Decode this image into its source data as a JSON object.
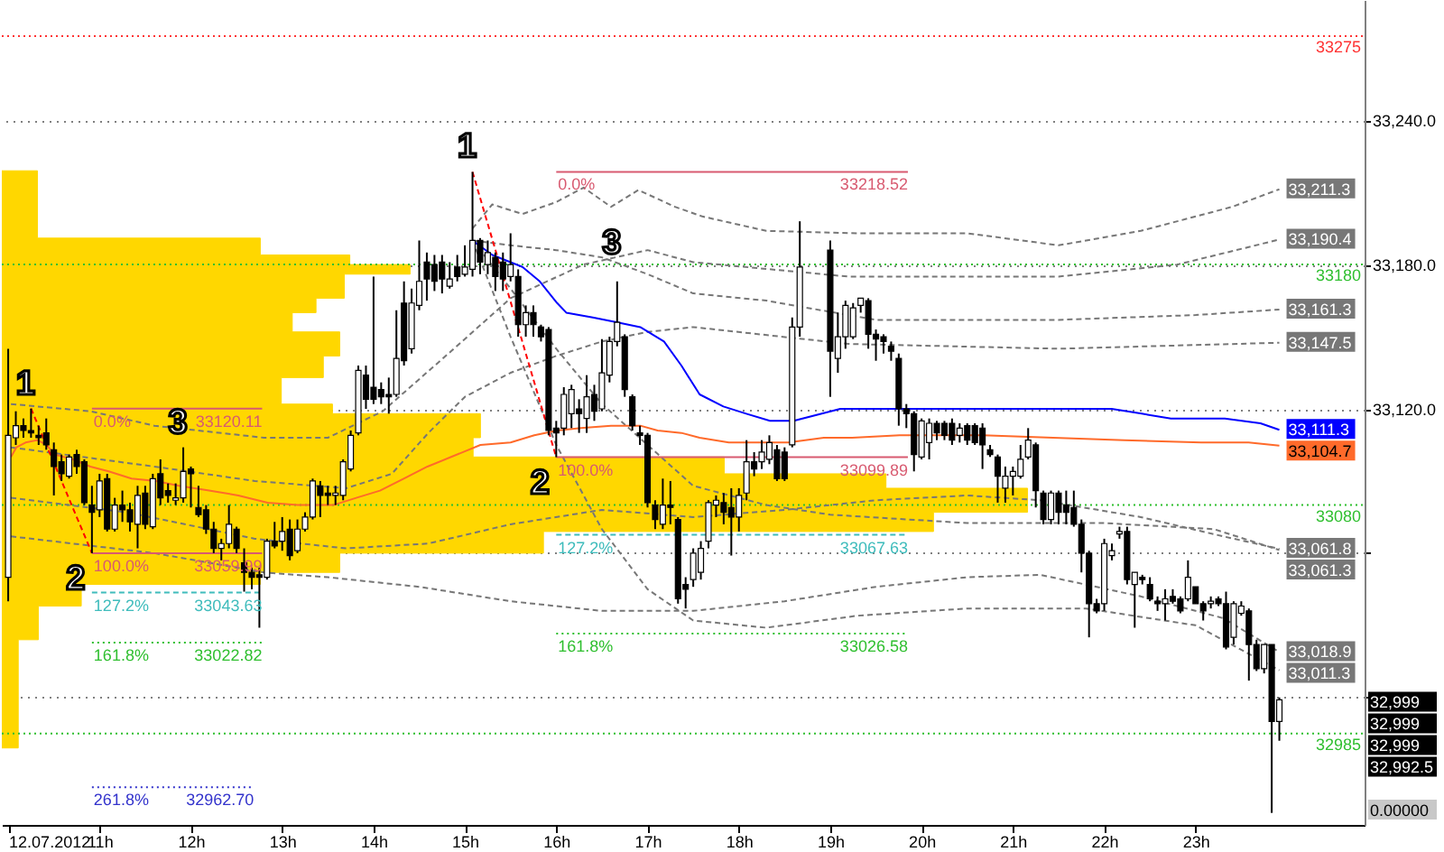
{
  "chart_data": {
    "type": "candlestick",
    "color": "#000000",
    "x": [
      10,
      10.0833,
      10.1667,
      10.25,
      10.3333,
      10.4167,
      10.5,
      10.5833,
      10.6667,
      10.75,
      10.8333,
      10.9167,
      11,
      11.0833,
      11.1667,
      11.25,
      11.3333,
      11.4167,
      11.5,
      11.5833,
      11.6667,
      11.75,
      11.8333,
      11.9167,
      12,
      12.0833,
      12.1667,
      12.25,
      12.3333,
      12.4167,
      12.5,
      12.5833,
      12.6667,
      12.75,
      12.8333,
      12.9167,
      13,
      13.0833,
      13.1667,
      13.25,
      13.3333,
      13.4167,
      13.5,
      13.5833,
      13.6667,
      13.75,
      13.8333,
      13.9167,
      14,
      14.0833,
      14.1667,
      14.25,
      14.3333,
      14.4167,
      14.5,
      14.5833,
      14.6667,
      14.75,
      14.8333,
      14.9167,
      15,
      15.0833,
      15.1667,
      15.25,
      15.3333,
      15.4167,
      15.5,
      15.5833,
      15.6667,
      15.75,
      15.8333,
      15.9167,
      16,
      16.0833,
      16.1667,
      16.25,
      16.3333,
      16.4167,
      16.5,
      16.5833,
      16.6667,
      16.75,
      16.8333,
      16.9167,
      17,
      17.0833,
      17.1667,
      17.25,
      17.3333,
      17.4167,
      17.5,
      17.5833,
      17.6667,
      17.75,
      17.8333,
      17.9167,
      18,
      18.0833,
      18.1667,
      18.25,
      18.3333,
      18.4167,
      18.5,
      18.5833,
      18.6667,
      19,
      19.0833,
      19.1667,
      19.25,
      19.3333,
      19.4167,
      19.5,
      19.5833,
      19.6667,
      19.75,
      19.8333,
      19.9167,
      20,
      20.0833,
      20.1667,
      20.25,
      20.3333,
      20.4167,
      20.5,
      20.5833,
      20.6667,
      20.75,
      20.8333,
      20.9167,
      21,
      21.0833,
      21.1667,
      21.25,
      21.3333,
      21.4167,
      21.5,
      21.5833,
      21.6667,
      21.75,
      21.8333,
      21.9167,
      22,
      22.0833,
      22.1667,
      22.25,
      22.3333,
      22.4167,
      22.5,
      22.5833,
      22.6667,
      22.75,
      22.8333,
      22.9167,
      23,
      23.0833,
      23.1667,
      23.25,
      23.3333,
      23.4167,
      23.5,
      23.5833,
      23.6667,
      23.75,
      23.8333,
      23.9167
    ],
    "ohlc": [
      [
        33050,
        33145,
        33040,
        33109
      ],
      [
        33108,
        33119,
        33105,
        33113
      ],
      [
        33113,
        33116,
        33108,
        33111
      ],
      [
        33111,
        33120.11,
        33108,
        33110
      ],
      [
        33109,
        33113,
        33105,
        33108
      ],
      [
        33110,
        33116,
        33103,
        33105
      ],
      [
        33103,
        33106,
        33084,
        33096
      ],
      [
        33098,
        33101,
        33090,
        33093
      ],
      [
        33092,
        33101,
        33091,
        33100
      ],
      [
        33101,
        33103,
        33093,
        33096
      ],
      [
        33098,
        33099,
        33080,
        33081
      ],
      [
        33080,
        33088,
        33059.99,
        33077
      ],
      [
        33078,
        33093,
        33075,
        33090
      ],
      [
        33091,
        33093,
        33069,
        33070
      ],
      [
        33070,
        33083,
        33069,
        33080
      ],
      [
        33080,
        33086,
        33073,
        33078
      ],
      [
        33078,
        33081,
        33069,
        33073
      ],
      [
        33072,
        33088,
        33062,
        33084
      ],
      [
        33085,
        33088,
        33070,
        33072
      ],
      [
        33071,
        33093,
        33070,
        33091
      ],
      [
        33093,
        33099,
        33080,
        33083
      ],
      [
        33086,
        33089,
        33081,
        33084
      ],
      [
        33082,
        33089,
        33080,
        33083
      ],
      [
        33083,
        33104,
        33081,
        33094
      ],
      [
        33095,
        33096,
        33079,
        33093
      ],
      [
        33079,
        33088,
        33075,
        33076
      ],
      [
        33078,
        33080,
        33068,
        33070
      ],
      [
        33070,
        33073,
        33060,
        33062
      ],
      [
        33062,
        33066,
        33057,
        33064
      ],
      [
        33064,
        33080,
        33062,
        33072
      ],
      [
        33070,
        33071,
        33060,
        33062
      ],
      [
        33056,
        33062,
        33044,
        33052
      ],
      [
        33052,
        33054,
        33045,
        33050
      ],
      [
        33051,
        33054,
        33029,
        33050
      ],
      [
        33050,
        33066,
        33049,
        33065
      ],
      [
        33065,
        33073,
        33062,
        33063
      ],
      [
        33065,
        33075,
        33061,
        33069
      ],
      [
        33070,
        33074,
        33057,
        33059
      ],
      [
        33061,
        33074,
        33060,
        33070
      ],
      [
        33070,
        33077,
        33069,
        33075
      ],
      [
        33075,
        33091,
        33074,
        33090
      ],
      [
        33088,
        33090,
        33075,
        33084
      ],
      [
        33085,
        33088,
        33080,
        33084
      ],
      [
        33084,
        33088,
        33080,
        33085
      ],
      [
        33084,
        33099,
        33082,
        33098
      ],
      [
        33095,
        33111,
        33094,
        33109
      ],
      [
        33110,
        33138,
        33109,
        33136
      ],
      [
        33134,
        33138,
        33120,
        33124
      ],
      [
        33129,
        33175,
        33122,
        33124
      ],
      [
        33128,
        33131,
        33122,
        33125
      ],
      [
        33126,
        33133,
        33118,
        33125
      ],
      [
        33126,
        33161,
        33125,
        33141
      ],
      [
        33164,
        33173,
        33138,
        33140
      ],
      [
        33145,
        33170,
        33143,
        33164
      ],
      [
        33163,
        33190,
        33161,
        33173
      ],
      [
        33181,
        33185,
        33165,
        33174
      ],
      [
        33180,
        33184,
        33169,
        33173
      ],
      [
        33181,
        33184,
        33168,
        33174
      ],
      [
        33171,
        33181,
        33170,
        33174
      ],
      [
        33179,
        33184,
        33173,
        33175
      ],
      [
        33176,
        33188,
        33175,
        33179
      ],
      [
        33178,
        33218.52,
        33175,
        33190
      ],
      [
        33190,
        33191,
        33176,
        33181
      ],
      [
        33180,
        33190,
        33176,
        33185
      ],
      [
        33183,
        33185,
        33169,
        33175
      ],
      [
        33181,
        33185,
        33169,
        33174
      ],
      [
        33175,
        33193,
        33173,
        33180
      ],
      [
        33175,
        33178,
        33150,
        33155
      ],
      [
        33155,
        33163,
        33150,
        33160
      ],
      [
        33160,
        33163,
        33150,
        33155
      ],
      [
        33154,
        33155,
        33148,
        33150
      ],
      [
        33153,
        33154,
        33109,
        33111
      ],
      [
        33112,
        33115,
        33099.89,
        33110
      ],
      [
        33112,
        33129,
        33109,
        33126
      ],
      [
        33118,
        33130,
        33112,
        33128
      ],
      [
        33120,
        33124,
        33110,
        33118
      ],
      [
        33116,
        33134,
        33110,
        33125
      ],
      [
        33126,
        33130,
        33115,
        33119
      ],
      [
        33120,
        33149,
        33119,
        33135
      ],
      [
        33134,
        33150,
        33131,
        33148
      ],
      [
        33148,
        33173,
        33146,
        33156
      ],
      [
        33150,
        33151,
        33125,
        33128
      ],
      [
        33125,
        33126,
        33111,
        33113
      ],
      [
        33110,
        33113,
        33105,
        33109
      ],
      [
        33109,
        33110,
        33079,
        33081
      ],
      [
        33080,
        33082,
        33070,
        33074
      ],
      [
        33072,
        33091,
        33070,
        33080
      ],
      [
        33080,
        33090,
        33072,
        33079
      ],
      [
        33074,
        33075,
        33039,
        33041
      ],
      [
        33047,
        33050,
        33037,
        33045
      ],
      [
        33049,
        33062,
        33046,
        33060
      ],
      [
        33052,
        33065,
        33049,
        33062
      ],
      [
        33065,
        33082,
        33062,
        33081
      ],
      [
        33080,
        33084,
        33075,
        33082
      ],
      [
        33081,
        33085,
        33072,
        33077
      ],
      [
        33079,
        33087,
        33059,
        33075
      ],
      [
        33075,
        33087,
        33069,
        33084
      ],
      [
        33085,
        33107,
        33082,
        33098
      ],
      [
        33098,
        33102,
        33092,
        33095
      ],
      [
        33098,
        33107,
        33095,
        33102
      ],
      [
        33099,
        33109,
        33097,
        33106
      ],
      [
        33103,
        33105,
        33090,
        33091
      ],
      [
        33102,
        33104,
        33090,
        33091
      ],
      [
        33105,
        33158,
        33104,
        33154
      ],
      [
        33154,
        33198,
        33150,
        33179
      ],
      [
        33186,
        33190,
        33125,
        33144
      ],
      [
        33141,
        33160,
        33135,
        33150
      ],
      [
        33150,
        33165,
        33145,
        33163
      ],
      [
        33150,
        33164,
        33149,
        33162
      ],
      [
        33163,
        33166,
        33160,
        33166
      ],
      [
        33165,
        33166,
        33145,
        33151
      ],
      [
        33151,
        33153,
        33140,
        33149
      ],
      [
        33150,
        33151,
        33143,
        33148
      ],
      [
        33146,
        33148,
        33140,
        33144
      ],
      [
        33141,
        33143,
        33113,
        33120
      ],
      [
        33120,
        33122,
        33112,
        33118
      ],
      [
        33118,
        33119,
        33094,
        33101
      ],
      [
        33100,
        33116,
        33099,
        33115
      ],
      [
        33106,
        33116,
        33099,
        33114
      ],
      [
        33114,
        33115,
        33107,
        33110
      ],
      [
        33114,
        33115,
        33107,
        33109
      ],
      [
        33114,
        33116,
        33105,
        33107
      ],
      [
        33109,
        33114,
        33106,
        33112
      ],
      [
        33113,
        33114,
        33105,
        33107
      ],
      [
        33113,
        33114,
        33105,
        33106
      ],
      [
        33112,
        33114,
        33095,
        33105
      ],
      [
        33103,
        33105,
        33100,
        33101
      ],
      [
        33100,
        33101,
        33081,
        33092
      ],
      [
        33087,
        33096,
        33081,
        33092
      ],
      [
        33092,
        33096,
        33084,
        33094
      ],
      [
        33092,
        33105,
        33091,
        33099
      ],
      [
        33100,
        33112,
        33099,
        33107
      ],
      [
        33105,
        33106,
        33079,
        33086
      ],
      [
        33085,
        33086,
        33072,
        33074
      ],
      [
        33074,
        33086,
        33072,
        33085
      ],
      [
        33085,
        33086,
        33072,
        33077
      ],
      [
        33080,
        33086,
        33072,
        33077
      ],
      [
        33079,
        33086,
        33071,
        33072
      ],
      [
        33072,
        33074,
        33052,
        33060
      ],
      [
        33060,
        33061,
        33025,
        33039
      ],
      [
        33039,
        33041,
        33035,
        33036
      ],
      [
        33039,
        33066,
        33036,
        33064
      ],
      [
        33059,
        33064,
        33057,
        33061
      ],
      [
        33068,
        33071,
        33066,
        33069
      ],
      [
        33069,
        33071,
        33047,
        33049
      ],
      [
        33047,
        33052,
        33029,
        33052
      ],
      [
        33050,
        33051,
        33047,
        33049
      ],
      [
        33047,
        33050,
        33040,
        33041
      ],
      [
        33040,
        33042,
        33036,
        33039
      ],
      [
        33039,
        33045,
        33032,
        33041
      ],
      [
        33042,
        33045,
        33039,
        33040
      ],
      [
        33041,
        33042,
        33035,
        33036
      ],
      [
        33041,
        33057,
        33040,
        33050
      ],
      [
        33046,
        33046,
        33039,
        33039
      ],
      [
        33039,
        33040,
        33032,
        33036
      ],
      [
        33039,
        33042,
        33037,
        33040
      ],
      [
        33041,
        33042,
        33038,
        33039
      ],
      [
        33039,
        33044,
        33020,
        33021
      ],
      [
        33025,
        33040,
        33022,
        33039
      ],
      [
        33035,
        33040,
        33034,
        33038
      ],
      [
        33036,
        33037,
        33007,
        33022
      ],
      [
        33022,
        33024,
        33011,
        33012
      ],
      [
        33012,
        33022,
        33010,
        33022
      ],
      [
        33022,
        33022,
        32952,
        32990
      ],
      [
        32990,
        33000,
        32982,
        32999
      ]
    ],
    "xlim": [
      9.93,
      24.85
    ],
    "ylim": [
      32947,
      33290
    ],
    "xticks": [
      {
        "value": 10,
        "label": "12.07.2012"
      },
      {
        "value": 11,
        "label": "11h"
      },
      {
        "value": 12,
        "label": "12h"
      },
      {
        "value": 13,
        "label": "13h"
      },
      {
        "value": 14,
        "label": "14h"
      },
      {
        "value": 15,
        "label": "15h"
      },
      {
        "value": 16,
        "label": "16h"
      },
      {
        "value": 17,
        "label": "17h"
      },
      {
        "value": 18,
        "label": "18h"
      },
      {
        "value": 19,
        "label": "19h"
      },
      {
        "value": 20,
        "label": "20h"
      },
      {
        "value": 21,
        "label": "21h"
      },
      {
        "value": 22,
        "label": "22h"
      },
      {
        "value": 23,
        "label": "23h"
      }
    ],
    "yticks": [
      {
        "value": 33240,
        "label": "33,240.0"
      },
      {
        "value": 33180,
        "label": "33,180.0"
      },
      {
        "value": 33120,
        "label": "33,120.0"
      },
      {
        "value": 33060,
        "label": null
      },
      {
        "value": 33000,
        "label": null
      }
    ],
    "grid": "y",
    "series": [
      {
        "type": "area",
        "color": "#ffd700",
        "x": [
          9.93,
          10.11,
          10.11,
          10.33,
          10.33,
          10.8,
          10.8,
          12.76,
          12.76,
          13.63,
          13.63,
          15.86,
          15.86,
          20.13,
          20.13,
          21.16,
          21.16,
          19.61,
          19.61,
          17.84,
          17.84,
          15.09,
          15.09,
          15.17,
          15.17,
          13.55,
          13.55,
          12.99,
          12.99,
          13.45,
          13.45,
          13.63,
          13.63,
          13.11,
          13.11,
          13.37,
          13.37,
          13.68,
          13.68,
          14.4,
          14.4,
          13.74,
          13.74,
          12.76,
          12.76,
          10.32,
          10.32,
          9.93
        ],
        "values": [
          32979,
          32979,
          33024,
          33024,
          33038,
          33038,
          33047,
          33047,
          33052,
          33052,
          33060,
          33060,
          33069,
          33069,
          33077,
          33077,
          33087,
          33087,
          33093,
          33093,
          33100,
          33100,
          33108,
          33108,
          33118,
          33118,
          33122,
          33122,
          33133,
          33133,
          33142,
          33142,
          33152,
          33152,
          33160,
          33160,
          33166,
          33166,
          33176,
          33176,
          33180,
          33180,
          33184,
          33184,
          33191,
          33191,
          33219,
          33219
        ]
      },
      {
        "type": "line",
        "color": "#777777",
        "line_style": "dashed",
        "x": [
          15.0833,
          15.3,
          15.63,
          16.0,
          16.3,
          16.6,
          16.9,
          17.3,
          17.6,
          18.3,
          19.3,
          20.5,
          21.5,
          22.4,
          23.4,
          23.9167
        ],
        "values": [
          33195,
          33205,
          33201,
          33206,
          33212,
          33204,
          33211,
          33204,
          33200,
          33194,
          33193,
          33193,
          33188,
          33194,
          33204,
          33211.3
        ],
        "value_labels": [
          null,
          null,
          null,
          null,
          null,
          null,
          null,
          null,
          null,
          null,
          null,
          null,
          null,
          null,
          null,
          "33,211.3"
        ]
      },
      {
        "type": "line",
        "color": "#777777",
        "line_style": "dashed",
        "x": [
          10.03,
          10.9,
          11.6,
          12.8,
          13.5,
          14.1,
          14.85,
          15.5,
          16.3,
          17.0,
          17.5,
          19.2,
          21.5,
          22.8,
          23.9167
        ],
        "values": [
          33122,
          33119,
          33113,
          33108,
          33108,
          33119,
          33144,
          33166,
          33180,
          33186,
          33181,
          33175,
          33175,
          33180,
          33190.4
        ],
        "value_labels": [
          null,
          null,
          null,
          null,
          null,
          null,
          null,
          null,
          null,
          null,
          null,
          null,
          null,
          null,
          "33,190.4"
        ]
      },
      {
        "type": "line",
        "color": "#777777",
        "line_style": "dashed",
        "x": [
          15.0833,
          15.5,
          16.0,
          16.5,
          17.0,
          17.5,
          18.3,
          19.5,
          21.5,
          23.0,
          23.9167
        ],
        "values": [
          33190,
          33188,
          33186,
          33183,
          33176,
          33168,
          33165,
          33157,
          33157,
          33159,
          33161.3
        ],
        "value_labels": [
          null,
          null,
          null,
          null,
          null,
          null,
          null,
          null,
          null,
          null,
          "33,161.3"
        ]
      },
      {
        "type": "line",
        "color": "#777777",
        "line_style": "dashed",
        "x": [
          10.03,
          11.6,
          12.7,
          13.7,
          14.2,
          14.6,
          15.0,
          15.5,
          16.0,
          16.5,
          17.0,
          17.5,
          19.2,
          21.5,
          23.9167
        ],
        "values": [
          33104,
          33096,
          33090,
          33087,
          33093,
          33110,
          33125,
          33135,
          33142,
          33148,
          33152,
          33154,
          33147,
          33145,
          33147.5
        ],
        "value_labels": [
          null,
          null,
          null,
          null,
          null,
          null,
          null,
          null,
          null,
          null,
          null,
          null,
          null,
          null,
          "33,147.5"
        ]
      },
      {
        "type": "line",
        "color": "#777777",
        "line_style": "dashed",
        "x": [
          10.03,
          11.3,
          12.7,
          13.7,
          14.6,
          15.5,
          16.5,
          17.5,
          18.5,
          19.5,
          20.5,
          21.3,
          22.4,
          23.3,
          23.9167
        ],
        "values": [
          33083,
          33077,
          33066,
          33062,
          33064,
          33072,
          33078,
          33075,
          33078,
          33082,
          33084,
          33082,
          33075,
          33067,
          33061.8
        ],
        "value_labels": [
          null,
          null,
          null,
          null,
          null,
          null,
          null,
          null,
          null,
          null,
          null,
          null,
          null,
          null,
          "33,061.8"
        ]
      },
      {
        "type": "line",
        "color": "#777777",
        "line_style": "dashed",
        "x": [
          15.0833,
          15.5,
          16.0,
          16.5,
          17.0,
          17.5,
          18.3,
          19.0,
          20.5,
          22.0,
          23.2,
          23.9167
        ],
        "values": [
          33190,
          33170,
          33145,
          33122,
          33105,
          33088,
          33080,
          33076,
          33072.5,
          33072.5,
          33070,
          33061.3
        ],
        "value_labels": [
          null,
          null,
          null,
          null,
          null,
          null,
          null,
          null,
          null,
          null,
          null,
          "33,061.3"
        ]
      },
      {
        "type": "line",
        "color": "#777777",
        "line_style": "dashed",
        "x": [
          10.03,
          11.6,
          12.8,
          13.5,
          14.5,
          15.5,
          16.5,
          17.5,
          18.5,
          19.5,
          20.5,
          21.3,
          22.4,
          23.3,
          23.9167
        ],
        "values": [
          33067,
          33060,
          33052,
          33050,
          33046,
          33040,
          33036,
          33036,
          33040,
          33046,
          33050,
          33051,
          33042,
          33033,
          33018.9
        ],
        "value_labels": [
          null,
          null,
          null,
          null,
          null,
          null,
          null,
          null,
          null,
          null,
          null,
          null,
          null,
          null,
          "33,018.9"
        ]
      },
      {
        "type": "line",
        "color": "#777777",
        "line_style": "dashed",
        "x": [
          15.0833,
          15.5,
          16.0,
          16.5,
          17.0,
          17.5,
          18.3,
          19.3,
          20.5,
          21.8,
          23.0,
          23.9167
        ],
        "values": [
          33190,
          33150,
          33105,
          33070,
          33045,
          33032,
          33029,
          33034,
          33037,
          33037,
          33030,
          33011.3
        ],
        "value_labels": [
          null,
          null,
          null,
          null,
          null,
          null,
          null,
          null,
          null,
          null,
          null,
          "33,011.3"
        ]
      },
      {
        "type": "line",
        "color": "#0000ff",
        "x": [
          15.0833,
          15.3,
          15.63,
          15.82,
          16.01,
          16.11,
          16.4,
          16.66,
          16.92,
          17.18,
          17.37,
          17.57,
          17.83,
          18.08,
          18.34,
          18.6,
          19.11,
          19.76,
          20.67,
          22.08,
          22.41,
          22.73,
          23.32,
          23.71,
          23.9167
        ],
        "values": [
          33190,
          33184,
          33179,
          33173,
          33164,
          33160,
          33158,
          33156,
          33154,
          33148,
          33138,
          33126,
          33121,
          33118,
          33115,
          33115,
          33120,
          33120,
          33120,
          33120,
          33118,
          33116,
          33116,
          33114,
          33111.3
        ],
        "value_labels": [
          null,
          null,
          null,
          null,
          null,
          null,
          null,
          null,
          null,
          null,
          null,
          null,
          null,
          null,
          null,
          null,
          null,
          null,
          null,
          null,
          null,
          null,
          null,
          null,
          "33,111.3"
        ]
      },
      {
        "type": "line",
        "color": "#ff6a2a",
        "x": [
          10.03,
          10.09,
          10.19,
          10.32,
          10.42,
          10.51,
          10.71,
          10.9,
          11.1,
          11.35,
          11.62,
          11.87,
          12.2,
          12.52,
          12.84,
          13.17,
          13.56,
          13.81,
          14.07,
          14.33,
          14.59,
          14.85,
          15.17,
          15.5,
          15.76,
          16.01,
          16.27,
          16.6,
          16.92,
          17.11,
          17.37,
          17.57,
          17.89,
          18.22,
          18.54,
          18.93,
          19.24,
          19.76,
          20.67,
          21.44,
          22.22,
          23.06,
          23.58,
          23.9167
        ],
        "values": [
          33100,
          33104,
          33106,
          33107,
          33105,
          33101,
          33099,
          33096,
          33094,
          33091,
          33090,
          33088,
          33086,
          33084,
          33081,
          33080,
          33080,
          33083,
          33086,
          33091,
          33096,
          33100,
          33105,
          33106,
          33109,
          33111,
          33112,
          33113,
          33113,
          33111,
          33110,
          33108,
          33106,
          33106,
          33106,
          33108,
          33108,
          33109,
          33109,
          33108,
          33107,
          33106,
          33106,
          33104.7
        ],
        "value_labels": [
          null,
          null,
          null,
          null,
          null,
          null,
          null,
          null,
          null,
          null,
          null,
          null,
          null,
          null,
          null,
          null,
          null,
          null,
          null,
          null,
          null,
          null,
          null,
          null,
          null,
          null,
          null,
          null,
          null,
          null,
          null,
          null,
          null,
          null,
          null,
          null,
          null,
          null,
          null,
          null,
          null,
          null,
          null,
          "33,104.7"
        ]
      },
      {
        "type": "line",
        "color": "#ff0000",
        "line_style": "dashed",
        "x": [
          10.25,
          10.9167
        ],
        "values": [
          33120.11,
          33059.99
        ]
      },
      {
        "type": "line",
        "color": "#ff0000",
        "line_style": "dashed",
        "x": [
          15.0833,
          16.0
        ],
        "values": [
          33218.52,
          33099.89
        ]
      },
      {
        "type": "line",
        "name": "0.0%",
        "color": "#d85a70",
        "x": [
          10.9167,
          12.78
        ],
        "values": [
          33120.11,
          33120.11
        ],
        "value_labels": [
          null,
          "33120.11"
        ]
      },
      {
        "type": "line",
        "name": "100.0%",
        "color": "#d85a70",
        "x": [
          10.9167,
          12.78
        ],
        "values": [
          33059.99,
          33059.99
        ],
        "value_labels": [
          null,
          "33059.99"
        ]
      },
      {
        "type": "line",
        "name": "127.2%",
        "color": "#3fbcbc",
        "line_style": "dashed",
        "x": [
          10.9167,
          12.78
        ],
        "values": [
          33043.63,
          33043.63
        ],
        "value_labels": [
          null,
          "33043.63"
        ]
      },
      {
        "type": "line",
        "name": "161.8%",
        "color": "#2fbf2f",
        "line_style": "dotted",
        "x": [
          10.9167,
          12.78
        ],
        "values": [
          33022.82,
          33022.82
        ],
        "value_labels": [
          null,
          "33022.82"
        ]
      },
      {
        "type": "line",
        "name": "261.8%",
        "color": "#3333cc",
        "line_style": "dotted",
        "x": [
          10.9167,
          12.69
        ],
        "values": [
          32962.7,
          32962.7
        ],
        "value_labels": [
          null,
          "32962.70"
        ]
      },
      {
        "type": "line",
        "name": "0.0%",
        "color": "#d85a70",
        "x": [
          16.0,
          19.85
        ],
        "values": [
          33218.52,
          33218.52
        ],
        "value_labels": [
          null,
          "33218.52"
        ]
      },
      {
        "type": "line",
        "name": "100.0%",
        "color": "#d85a70",
        "x": [
          16.0,
          19.85
        ],
        "values": [
          33099.89,
          33099.89
        ],
        "value_labels": [
          null,
          "33099.89"
        ]
      },
      {
        "type": "line",
        "name": "127.2%",
        "color": "#3fbcbc",
        "line_style": "dashed",
        "x": [
          16.0,
          19.85
        ],
        "values": [
          33067.63,
          33067.63
        ],
        "value_labels": [
          null,
          "33067.63"
        ]
      },
      {
        "type": "line",
        "name": "161.8%",
        "color": "#2fbf2f",
        "line_style": "dotted",
        "x": [
          16.0,
          19.85
        ],
        "values": [
          33026.58,
          33026.58
        ],
        "value_labels": [
          null,
          "33026.58"
        ]
      }
    ],
    "ref_lines": [
      {
        "axis": "y",
        "value": 33275,
        "label": "33275",
        "color": "#ff3333",
        "line_style": "dotted"
      },
      {
        "axis": "y",
        "value": 33180,
        "label": "33180",
        "color": "#2fbf2f",
        "line_style": "dotted"
      },
      {
        "axis": "y",
        "value": 33080,
        "label": "33080",
        "color": "#2fbf2f",
        "line_style": "dotted"
      },
      {
        "axis": "y",
        "value": 32985,
        "label": "32985",
        "color": "#2fbf2f",
        "line_style": "dotted"
      }
    ],
    "annotations": [
      {
        "text": "1",
        "x": 10.25,
        "y": 33120.11
      },
      {
        "text": "2",
        "x": 10.9167,
        "y": 33059.99
      },
      {
        "text": "3",
        "x": 11.9167,
        "y": 33104
      },
      {
        "text": "1",
        "x": 15.0833,
        "y": 33218.52
      },
      {
        "text": "2",
        "x": 16.0,
        "y": 33099.89
      },
      {
        "text": "3",
        "x": 16.6667,
        "y": 33173
      },
      "32,999",
      "32,999",
      "32,999",
      "32,992.5",
      "0.00000"
    ]
  }
}
